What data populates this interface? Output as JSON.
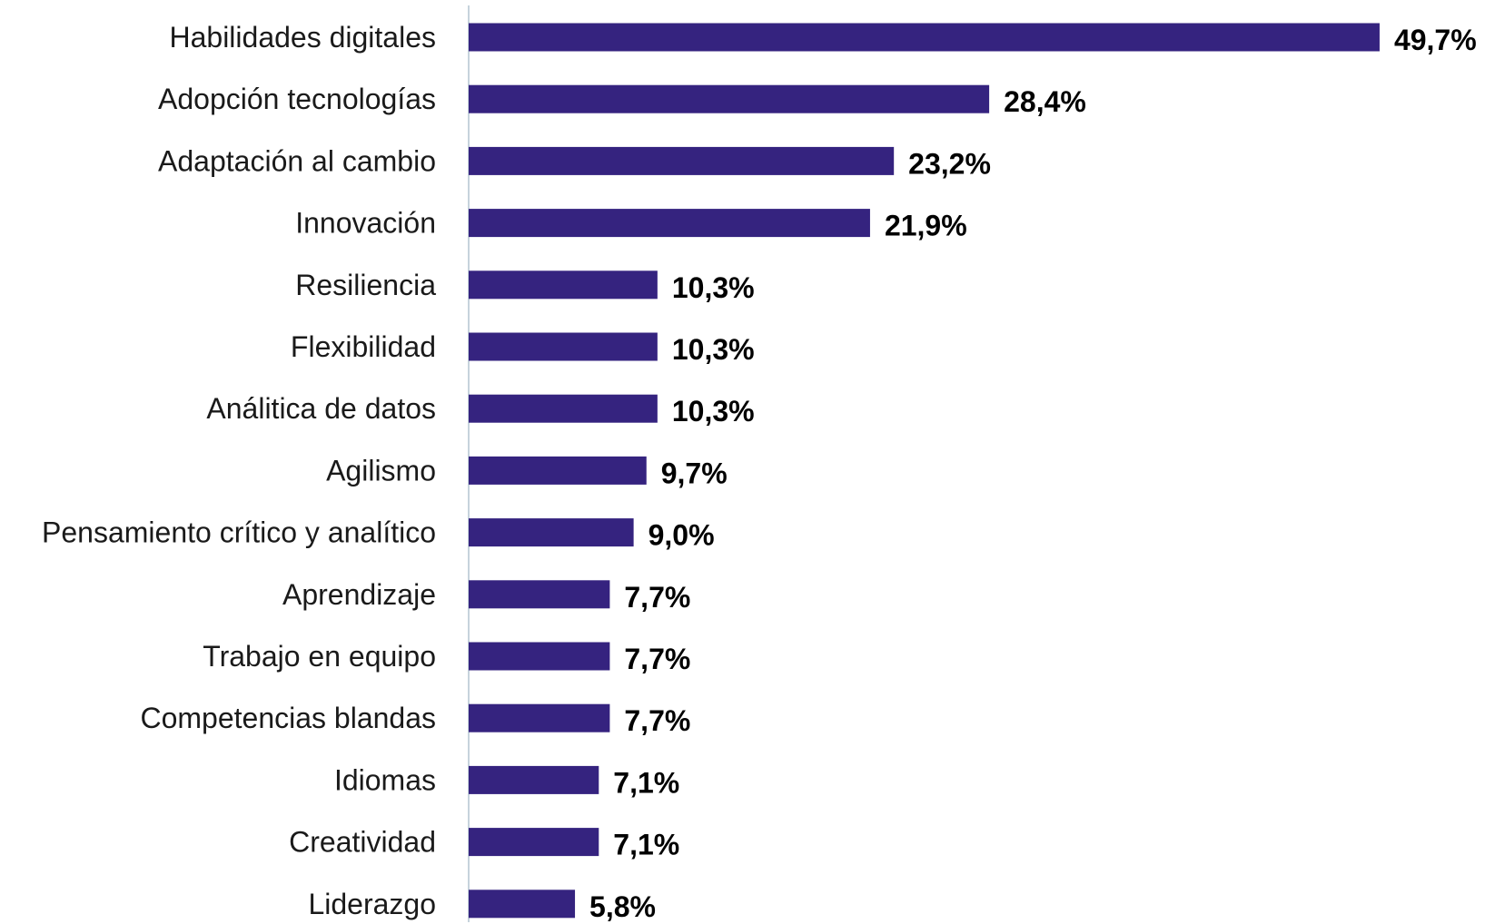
{
  "chart_data": {
    "type": "bar",
    "orientation": "horizontal",
    "categories": [
      "Habilidades digitales",
      "Adopción tecnologías",
      "Adaptación al cambio",
      "Innovación",
      "Resiliencia",
      "Flexibilidad",
      "Análitica de datos",
      "Agilismo",
      "Pensamiento crítico y analítico",
      "Aprendizaje",
      "Trabajo en equipo",
      "Competencias blandas",
      "Idiomas",
      "Creatividad",
      "Liderazgo"
    ],
    "values": [
      49.7,
      28.4,
      23.2,
      21.9,
      10.3,
      10.3,
      10.3,
      9.7,
      9.0,
      7.7,
      7.7,
      7.7,
      7.1,
      7.1,
      5.8
    ],
    "value_labels": [
      "49,7%",
      "28,4%",
      "23,2%",
      "21,9%",
      "10,3%",
      "10,3%",
      "10,3%",
      "9,7%",
      "9,0%",
      "7,7%",
      "7,7%",
      "7,7%",
      "7,1%",
      "7,1%",
      "5,8%"
    ],
    "xlim": [
      0,
      50
    ],
    "grid": false,
    "legend": "none",
    "bar_color": "#35237f",
    "axis_color": "#c6d3dc"
  }
}
